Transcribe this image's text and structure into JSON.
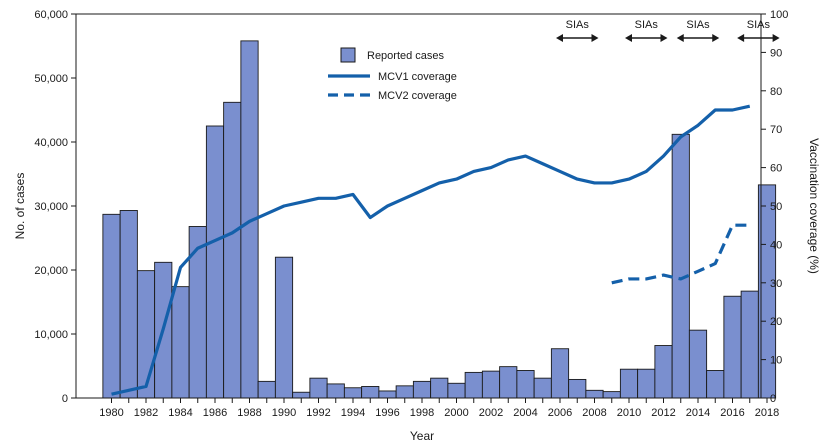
{
  "chart_data": {
    "type": "bar",
    "title": "",
    "xlabel": "Year",
    "ylabel": "No. of cases",
    "y2label": "Vaccination coverage (%)",
    "ylim": [
      0,
      60000
    ],
    "y2lim": [
      0,
      100
    ],
    "yticks": [
      "0",
      "10,000",
      "20,000",
      "30,000",
      "40,000",
      "50,000",
      "60,000"
    ],
    "y2ticks": [
      "0",
      "10",
      "20",
      "30",
      "40",
      "50",
      "60",
      "70",
      "80",
      "90",
      "100"
    ],
    "years": [
      1980,
      1981,
      1982,
      1983,
      1984,
      1985,
      1986,
      1987,
      1988,
      1989,
      1990,
      1991,
      1992,
      1993,
      1994,
      1995,
      1996,
      1997,
      1998,
      1999,
      2000,
      2001,
      2002,
      2003,
      2004,
      2005,
      2006,
      2007,
      2008,
      2009,
      2010,
      2011,
      2012,
      2013,
      2014,
      2015,
      2016,
      2017,
      2018
    ],
    "xtick_labels": [
      "1980",
      "1982",
      "1984",
      "1986",
      "1988",
      "1990",
      "1992",
      "1994",
      "1996",
      "1998",
      "2000",
      "2002",
      "2004",
      "2006",
      "2008",
      "2010",
      "2012",
      "2014",
      "2016",
      "2018"
    ],
    "series": [
      {
        "name": "Reported cases",
        "kind": "bar",
        "color": "#7a8fcf",
        "values": [
          28700,
          29300,
          19900,
          21200,
          17400,
          26800,
          42500,
          46200,
          55800,
          2600,
          22000,
          900,
          3100,
          2200,
          1600,
          1800,
          1100,
          1900,
          2600,
          3100,
          2300,
          4000,
          4200,
          4900,
          4300,
          3100,
          7700,
          2900,
          1200,
          1000,
          4500,
          4500,
          8200,
          41200,
          10600,
          4300,
          15900,
          16700,
          33300
        ]
      },
      {
        "name": "MCV1 coverage",
        "kind": "line",
        "style": "solid",
        "color": "#1460aa",
        "years": [
          1980,
          1981,
          1982,
          1983,
          1984,
          1985,
          1986,
          1987,
          1988,
          1989,
          1990,
          1991,
          1992,
          1993,
          1994,
          1995,
          1996,
          1997,
          1998,
          1999,
          2000,
          2001,
          2002,
          2003,
          2004,
          2005,
          2006,
          2007,
          2008,
          2009,
          2010,
          2011,
          2012,
          2013,
          2014,
          2015,
          2016,
          2017
        ],
        "values": [
          1,
          2,
          3,
          18,
          34,
          39,
          41,
          43,
          46,
          48,
          50,
          51,
          52,
          52,
          53,
          47,
          50,
          52,
          54,
          56,
          57,
          59,
          60,
          62,
          63,
          61,
          59,
          57,
          56,
          56,
          57,
          59,
          63,
          68,
          71,
          75,
          75,
          76
        ]
      },
      {
        "name": "MCV2 coverage",
        "kind": "line",
        "style": "dashed",
        "color": "#1460aa",
        "years": [
          2009,
          2010,
          2011,
          2012,
          2013,
          2014,
          2015,
          2016,
          2017
        ],
        "values": [
          30,
          31,
          31,
          32,
          31,
          33,
          35,
          45,
          45
        ]
      }
    ],
    "annotations": [
      {
        "text": "SIAs",
        "from": 2006,
        "to": 2008
      },
      {
        "text": "SIAs",
        "from": 2010,
        "to": 2012
      },
      {
        "text": "SIAs",
        "from": 2013,
        "to": 2015
      },
      {
        "text": "SIAs",
        "from": 2016.5,
        "to": 2018.5
      }
    ],
    "legend": {
      "position": "top-center",
      "entries": [
        "Reported cases",
        "MCV1 coverage",
        "MCV2 coverage"
      ]
    }
  }
}
